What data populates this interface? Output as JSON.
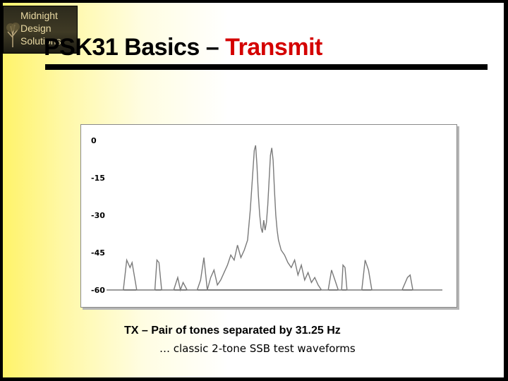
{
  "logo": {
    "lines": [
      "Midnight",
      "Design",
      "Solutions"
    ],
    "colors": {
      "background": "#3a3522",
      "text": "#e9d9a3"
    }
  },
  "title": {
    "prefix": "PSK31 Basics – ",
    "accent": "Transmit",
    "accent_color": "#d40000"
  },
  "caption": {
    "line1": "TX – Pair of tones separated by 31.25 Hz",
    "line2": "… classic 2-tone SSB test waveforms"
  },
  "chart_data": {
    "type": "line",
    "title": "",
    "xlabel": "",
    "ylabel": "",
    "yticks": [
      "0",
      "-15",
      "-30",
      "-45",
      "-60"
    ],
    "ylim": [
      -60,
      0
    ],
    "xlim": [
      0,
      500
    ],
    "grid": false,
    "line_color": "#7a7a7a",
    "x": [
      0,
      25,
      30,
      35,
      38,
      45,
      50,
      60,
      72,
      75,
      78,
      82,
      90,
      100,
      106,
      110,
      114,
      120,
      135,
      140,
      145,
      150,
      155,
      160,
      165,
      170,
      175,
      180,
      185,
      190,
      195,
      200,
      205,
      210,
      212,
      214,
      216,
      218,
      220,
      222,
      224,
      226,
      228,
      230,
      232,
      234,
      236,
      238,
      240,
      242,
      244,
      246,
      248,
      250,
      252,
      254,
      256,
      260,
      265,
      270,
      275,
      280,
      285,
      290,
      295,
      300,
      305,
      310,
      315,
      320,
      330,
      335,
      340,
      345,
      350,
      352,
      355,
      358,
      365,
      380,
      385,
      390,
      395,
      400,
      420,
      440,
      448,
      452,
      456,
      470,
      490,
      500
    ],
    "y": [
      -60,
      -60,
      -48,
      -51,
      -49,
      -60,
      -60,
      -60,
      -60,
      -48,
      -49,
      -60,
      -60,
      -60,
      -55,
      -60,
      -57,
      -60,
      -60,
      -56,
      -47,
      -60,
      -55,
      -52,
      -58,
      -56,
      -53,
      -50,
      -46,
      -48,
      -42,
      -47,
      -44,
      -40,
      -34,
      -28,
      -20,
      -12,
      -4,
      -2,
      -10,
      -22,
      -30,
      -35,
      -37,
      -32,
      -36,
      -33,
      -26,
      -16,
      -6,
      -3,
      -8,
      -20,
      -30,
      -36,
      -40,
      -44,
      -46,
      -49,
      -51,
      -48,
      -54,
      -50,
      -56,
      -53,
      -57,
      -55,
      -58,
      -60,
      -60,
      -52,
      -56,
      -60,
      -60,
      -50,
      -51,
      -60,
      -60,
      -60,
      -48,
      -52,
      -60,
      -60,
      -60,
      -60,
      -55,
      -54,
      -60,
      -60,
      -60,
      -60
    ]
  }
}
